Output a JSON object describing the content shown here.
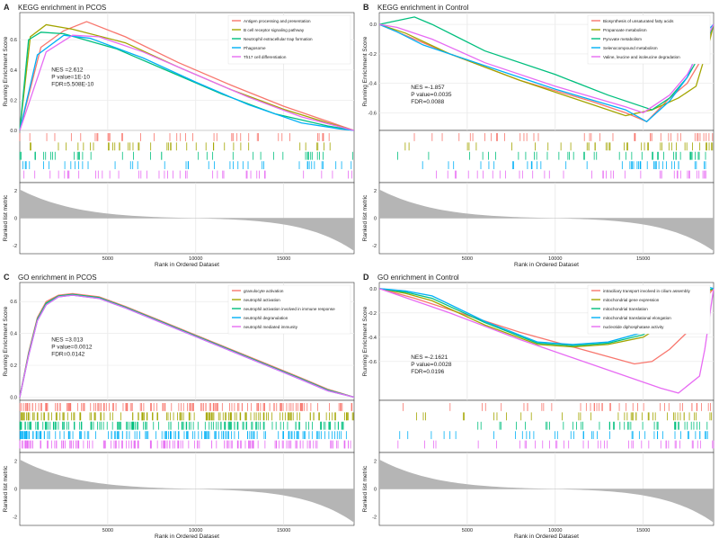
{
  "figure": {
    "x_axis_label": "Rank in Ordered Dataset",
    "y_axis_label_top": "Running Enrichment Score",
    "y_axis_label_bottom": "Ranked list metric",
    "x_ticks": [
      5000,
      10000,
      15000
    ],
    "x_range": [
      0,
      19000
    ]
  },
  "chart_data": [
    {
      "type": "line",
      "panel_letter": "A",
      "title": "KEGG enrichment in PCOS",
      "ylim": [
        0,
        0.78
      ],
      "y_ticks": [
        0.0,
        0.2,
        0.4,
        0.6
      ],
      "legend_position": "top-right",
      "stats": [
        "NES =2.612",
        "P value=1E-10",
        "FDR=5.508E-10"
      ],
      "series": [
        {
          "name": "Antigen processing and presentation",
          "color": "#F8766D",
          "x": [
            0,
            1200,
            2500,
            3800,
            6000,
            9000,
            12000,
            15000,
            17500,
            19000
          ],
          "values": [
            0,
            0.55,
            0.66,
            0.72,
            0.62,
            0.45,
            0.3,
            0.16,
            0.06,
            0
          ]
        },
        {
          "name": "B cell receptor signaling pathway",
          "color": "#A3A500",
          "x": [
            0,
            600,
            1500,
            3000,
            6000,
            9000,
            12000,
            15000,
            17500,
            19000
          ],
          "values": [
            0,
            0.62,
            0.7,
            0.67,
            0.58,
            0.42,
            0.27,
            0.14,
            0.05,
            0
          ]
        },
        {
          "name": "Neutrophil extracellular trap formation",
          "color": "#00BF7D",
          "x": [
            0,
            500,
            1200,
            2500,
            5500,
            8500,
            11500,
            14500,
            17500,
            19000
          ],
          "values": [
            0,
            0.6,
            0.65,
            0.64,
            0.54,
            0.39,
            0.24,
            0.11,
            0.03,
            0
          ]
        },
        {
          "name": "Phagosome",
          "color": "#00B0F6",
          "x": [
            0,
            1000,
            2500,
            4000,
            7000,
            10000,
            13000,
            16000,
            18200,
            19000
          ],
          "values": [
            0,
            0.5,
            0.63,
            0.61,
            0.48,
            0.32,
            0.17,
            0.05,
            0.01,
            0
          ]
        },
        {
          "name": "Th17 cell differentiation",
          "color": "#E76BF3",
          "x": [
            0,
            1500,
            3000,
            4500,
            7000,
            10000,
            13000,
            16000,
            18000,
            19000
          ],
          "values": [
            0,
            0.52,
            0.63,
            0.62,
            0.52,
            0.37,
            0.22,
            0.09,
            0.03,
            0
          ]
        }
      ],
      "metric_range": [
        -2.6,
        2.6
      ],
      "metric_ticks": [
        -2,
        0,
        2
      ]
    },
    {
      "type": "line",
      "panel_letter": "B",
      "title": "KEGG enrichment in Control",
      "ylim": [
        -0.72,
        0.08
      ],
      "y_ticks": [
        0.0,
        -0.2,
        -0.4,
        -0.6
      ],
      "legend_position": "top-right",
      "stats": [
        "NES =-1.857",
        "P value=0.0035",
        "FDR=0.0088"
      ],
      "series": [
        {
          "name": "Biosynthesis of unsaturated fatty acids",
          "color": "#F8766D",
          "x": [
            0,
            1000,
            4000,
            8000,
            12000,
            14000,
            15200,
            16500,
            17500,
            18500,
            19000
          ],
          "values": [
            0,
            -0.05,
            -0.2,
            -0.38,
            -0.52,
            -0.6,
            -0.66,
            -0.5,
            -0.4,
            -0.2,
            0
          ]
        },
        {
          "name": "Propanoate metabolism",
          "color": "#A3A500",
          "x": [
            0,
            1500,
            4000,
            8000,
            12000,
            14000,
            15500,
            17000,
            18000,
            18800,
            19000
          ],
          "values": [
            0,
            -0.06,
            -0.2,
            -0.38,
            -0.54,
            -0.62,
            -0.58,
            -0.5,
            -0.42,
            -0.1,
            0
          ]
        },
        {
          "name": "Pyruvate metabolism",
          "color": "#00BF7D",
          "x": [
            0,
            2000,
            3000,
            6000,
            10000,
            13000,
            15500,
            16500,
            17500,
            18500,
            19000
          ],
          "values": [
            0,
            0.05,
            0.0,
            -0.18,
            -0.34,
            -0.48,
            -0.58,
            -0.5,
            -0.36,
            -0.15,
            0
          ]
        },
        {
          "name": "Selenocompound metabolism",
          "color": "#00B0F6",
          "x": [
            0,
            1000,
            2500,
            6000,
            10000,
            14000,
            15200,
            16500,
            17500,
            18500,
            19000
          ],
          "values": [
            0,
            -0.05,
            -0.14,
            -0.28,
            -0.44,
            -0.58,
            -0.66,
            -0.52,
            -0.36,
            -0.06,
            0
          ]
        },
        {
          "name": "Valine, leucine and isoleucine degradation",
          "color": "#E76BF3",
          "x": [
            0,
            1000,
            3000,
            6000,
            10000,
            14000,
            15000,
            16500,
            17500,
            18500,
            19000
          ],
          "values": [
            0,
            -0.02,
            -0.1,
            -0.26,
            -0.42,
            -0.56,
            -0.6,
            -0.48,
            -0.34,
            -0.12,
            0
          ]
        }
      ],
      "metric_range": [
        -2.6,
        2.6
      ],
      "metric_ticks": [
        -2,
        0,
        2
      ]
    },
    {
      "type": "line",
      "panel_letter": "C",
      "title": "GO enrichment in PCOS",
      "ylim": [
        -0.02,
        0.72
      ],
      "y_ticks": [
        0.0,
        0.2,
        0.4,
        0.6
      ],
      "legend_position": "top-right",
      "stats": [
        "NES =3.013",
        "P value=0.0012",
        "FDR=0.0142"
      ],
      "series": [
        {
          "name": "granulocyte activation",
          "color": "#F8766D",
          "x": [
            0,
            500,
            1000,
            1500,
            2200,
            3000,
            4500,
            6000,
            8000,
            10000,
            12000,
            14000,
            16000,
            17500,
            19000
          ],
          "values": [
            0,
            0.28,
            0.5,
            0.6,
            0.64,
            0.65,
            0.63,
            0.57,
            0.48,
            0.39,
            0.3,
            0.21,
            0.12,
            0.05,
            0
          ]
        },
        {
          "name": "neutrophil activation",
          "color": "#A3A500",
          "x": [
            0,
            500,
            1000,
            1500,
            2200,
            3000,
            4500,
            6000,
            8000,
            10000,
            12000,
            14000,
            16000,
            17500,
            19000
          ],
          "values": [
            0,
            0.27,
            0.49,
            0.59,
            0.635,
            0.645,
            0.625,
            0.565,
            0.475,
            0.385,
            0.295,
            0.205,
            0.115,
            0.045,
            0
          ]
        },
        {
          "name": "neutrophil activation involved in immune response",
          "color": "#00BF7D",
          "x": [
            0,
            500,
            1000,
            1500,
            2200,
            3000,
            4500,
            6000,
            8000,
            10000,
            12000,
            14000,
            16000,
            17500,
            19000
          ],
          "values": [
            0,
            0.27,
            0.49,
            0.59,
            0.635,
            0.645,
            0.625,
            0.565,
            0.475,
            0.385,
            0.295,
            0.205,
            0.115,
            0.045,
            0
          ]
        },
        {
          "name": "neutrophil degranulation",
          "color": "#00B0F6",
          "x": [
            0,
            500,
            1000,
            1500,
            2200,
            3000,
            4500,
            6000,
            8000,
            10000,
            12000,
            14000,
            16000,
            17500,
            19000
          ],
          "values": [
            0,
            0.26,
            0.48,
            0.58,
            0.63,
            0.64,
            0.62,
            0.56,
            0.47,
            0.38,
            0.29,
            0.2,
            0.11,
            0.04,
            0
          ]
        },
        {
          "name": "neutrophil mediated immunity",
          "color": "#E76BF3",
          "x": [
            0,
            500,
            1000,
            1500,
            2200,
            3000,
            4500,
            6000,
            8000,
            10000,
            12000,
            14000,
            16000,
            17500,
            19000
          ],
          "values": [
            0,
            0.26,
            0.48,
            0.58,
            0.63,
            0.64,
            0.62,
            0.56,
            0.47,
            0.38,
            0.29,
            0.2,
            0.11,
            0.04,
            0
          ]
        }
      ],
      "metric_range": [
        -2.6,
        2.6
      ],
      "metric_ticks": [
        -2,
        0,
        2
      ]
    },
    {
      "type": "line",
      "panel_letter": "D",
      "title": "GO enrichment in Control",
      "ylim": [
        -0.92,
        0.05
      ],
      "y_ticks": [
        0.0,
        -0.2,
        -0.4,
        -0.6
      ],
      "legend_position": "top-right",
      "stats": [
        "NES =-2.1621",
        "P value=0.0028",
        "FDR=0.0196"
      ],
      "series": [
        {
          "name": "intraciliary transport involved in cilium assembly",
          "color": "#F8766D",
          "x": [
            0,
            2000,
            5000,
            8000,
            12000,
            14500,
            15500,
            16500,
            17500,
            18300,
            19000
          ],
          "values": [
            0,
            -0.08,
            -0.22,
            -0.36,
            -0.52,
            -0.62,
            -0.6,
            -0.5,
            -0.36,
            -0.12,
            0
          ]
        },
        {
          "name": "mitochondrial gene expression",
          "color": "#A3A500",
          "x": [
            0,
            1500,
            3000,
            6000,
            9000,
            11000,
            13000,
            15000,
            17000,
            18500,
            19000
          ],
          "values": [
            0,
            -0.04,
            -0.1,
            -0.3,
            -0.46,
            -0.48,
            -0.46,
            -0.4,
            -0.22,
            -0.04,
            0
          ]
        },
        {
          "name": "mitochondrial translation",
          "color": "#00BF7D",
          "x": [
            0,
            1500,
            3000,
            6000,
            9000,
            11000,
            13000,
            15000,
            17000,
            18500,
            19000
          ],
          "values": [
            0,
            -0.03,
            -0.08,
            -0.28,
            -0.45,
            -0.47,
            -0.45,
            -0.38,
            -0.18,
            -0.02,
            0
          ]
        },
        {
          "name": "mitochondrial translational elongation",
          "color": "#00B0F6",
          "x": [
            0,
            1500,
            3000,
            6000,
            9000,
            11000,
            13000,
            15000,
            17000,
            18500,
            19000
          ],
          "values": [
            0,
            -0.02,
            -0.06,
            -0.27,
            -0.44,
            -0.46,
            -0.44,
            -0.36,
            -0.16,
            0.02,
            0
          ]
        },
        {
          "name": "nucleotide diphosphatase activity",
          "color": "#E76BF3",
          "x": [
            0,
            4000,
            8000,
            12000,
            16000,
            17000,
            18200,
            18500,
            19000
          ],
          "values": [
            0,
            -0.2,
            -0.42,
            -0.62,
            -0.82,
            -0.86,
            -0.72,
            -0.5,
            0
          ]
        }
      ],
      "metric_range": [
        -2.6,
        2.6
      ],
      "metric_ticks": [
        -2,
        0,
        2
      ]
    }
  ]
}
